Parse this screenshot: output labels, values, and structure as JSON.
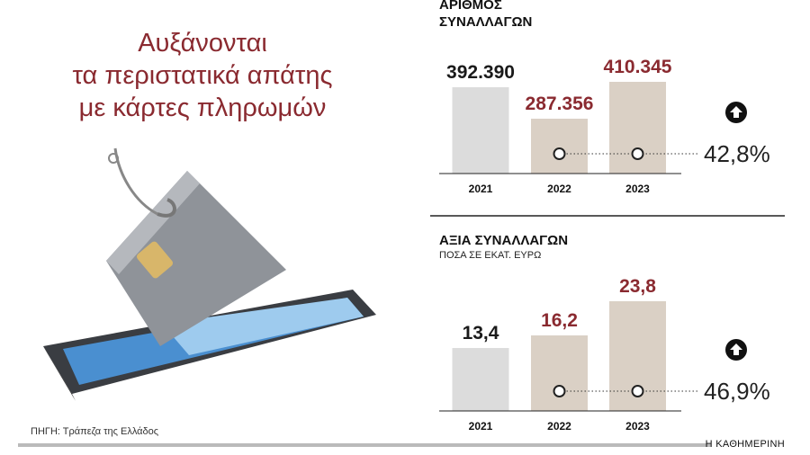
{
  "headline": [
    "Αυξάνονται",
    "τα περιστατικά απάτης",
    "με κάρτες πληρωμών"
  ],
  "source": "ΠΗΓΗ: Τράπεζα της Ελλάδος",
  "publisher": "Η ΚΑΘΗΜΕΡΙΝΗ",
  "chart_data": [
    {
      "type": "bar",
      "title": "ΑΡΙΘΜΟΣ ΣΥΝΑΛΛΑΓΩΝ",
      "categories": [
        "2021",
        "2022",
        "2023"
      ],
      "values": [
        392390,
        287356,
        410345
      ],
      "value_labels": [
        "392.390",
        "287.356",
        "410.345"
      ],
      "colors": [
        "#dcdcdc",
        "#dad0c5",
        "#dad0c5"
      ],
      "label_colors": [
        "#1a1a1a",
        "#8a2a30",
        "#8a2a30"
      ],
      "ylim": [
        104390,
        494390
      ],
      "change": {
        "value": 42.8,
        "label": "42,8%"
      }
    },
    {
      "type": "bar",
      "title": "ΑΞΙΑ ΣΥΝΑΛΛΑΓΩΝ",
      "subtitle": "ΠΟΣΑ ΣΕ ΕΚΑΤ. ΕΥΡΩ",
      "categories": [
        "2021",
        "2022",
        "2023"
      ],
      "values": [
        13.4,
        16.2,
        23.8
      ],
      "value_labels": [
        "13,4",
        "16,2",
        "23,8"
      ],
      "colors": [
        "#dcdcdc",
        "#dad0c5",
        "#dad0c5"
      ],
      "label_colors": [
        "#1a1a1a",
        "#8a2a30",
        "#8a2a30"
      ],
      "ylim": [
        -0.6,
        25.4
      ],
      "change": {
        "value": 46.9,
        "label": "46,9%"
      }
    }
  ]
}
